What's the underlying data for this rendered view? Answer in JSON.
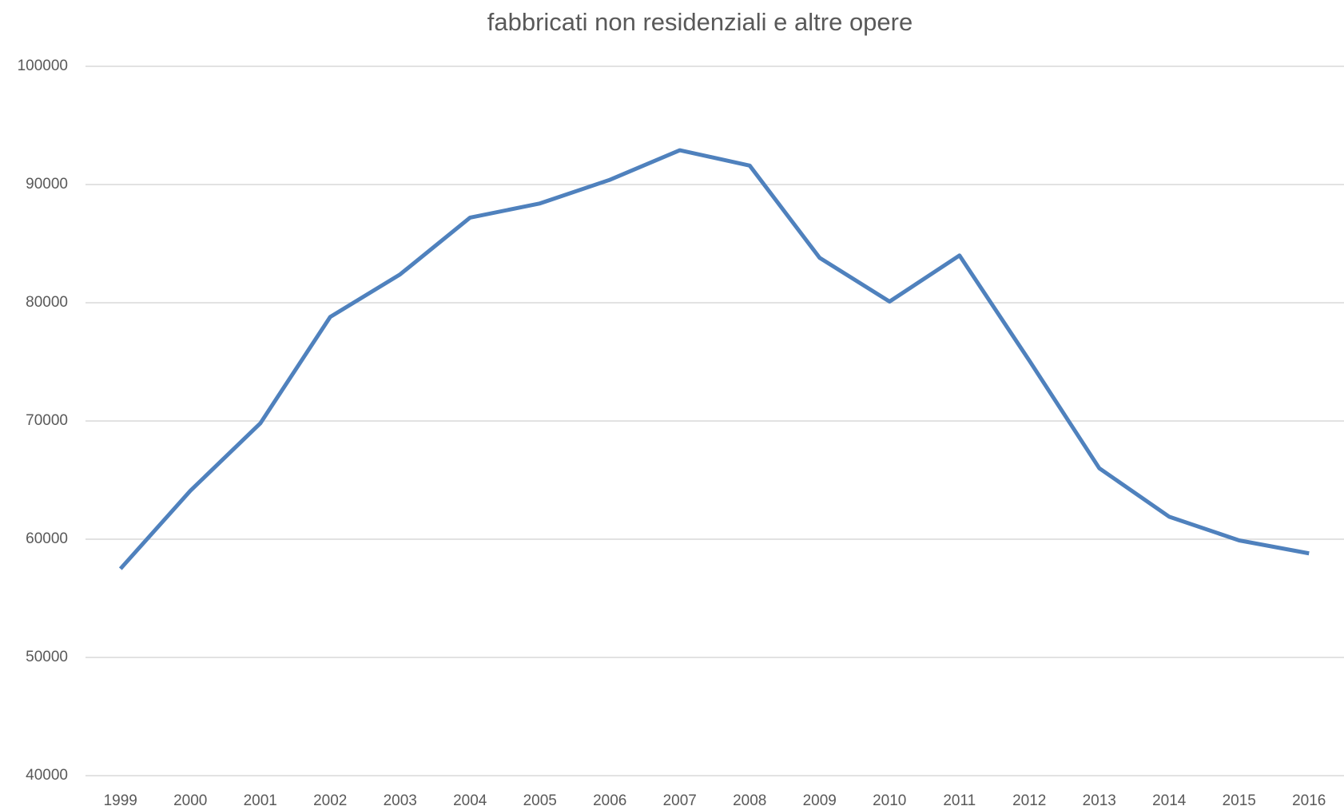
{
  "chart_data": {
    "type": "line",
    "title": "fabbricati non residenziali e altre opere",
    "categories": [
      "1999",
      "2000",
      "2001",
      "2002",
      "2003",
      "2004",
      "2005",
      "2006",
      "2007",
      "2008",
      "2009",
      "2010",
      "2011",
      "2012",
      "2013",
      "2014",
      "2015",
      "2016"
    ],
    "series": [
      {
        "color": "#4f81bd",
        "values": [
          57500,
          64100,
          69800,
          78800,
          82400,
          87200,
          88400,
          90400,
          92900,
          91600,
          83800,
          80100,
          84000,
          75100,
          66000,
          61900,
          59900,
          58800
        ]
      }
    ],
    "ylim": [
      40000,
      100000
    ],
    "yticks": [
      40000,
      50000,
      60000,
      70000,
      80000,
      90000,
      100000
    ],
    "grid": true
  }
}
